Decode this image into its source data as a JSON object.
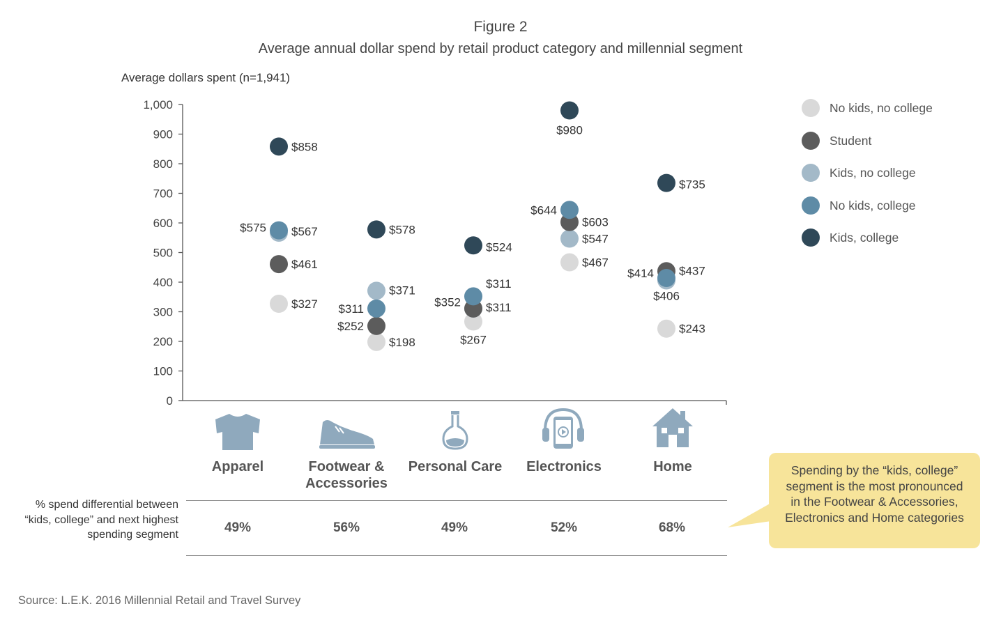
{
  "header": {
    "figure_label": "Figure 2",
    "title": "Average annual dollar spend by retail product category and millennial segment"
  },
  "chart_data": {
    "type": "scatter",
    "title": "Average annual dollar spend by retail product category and millennial segment",
    "ylabel": "Average dollars spent (n=1,941)",
    "xlabel": "",
    "ylim": [
      0,
      1000
    ],
    "yticks": [
      0,
      100,
      200,
      300,
      400,
      500,
      600,
      700,
      800,
      900,
      1000
    ],
    "ytick_labels": [
      "0",
      "100",
      "200",
      "300",
      "400",
      "500",
      "600",
      "700",
      "800",
      "900",
      "1,000"
    ],
    "categories": [
      "Apparel",
      "Footwear & Accessories",
      "Personal Care",
      "Electronics",
      "Home"
    ],
    "legend_position": "right",
    "grid": false,
    "series": [
      {
        "name": "No kids, no college",
        "color": "#d9d9d9",
        "values": [
          327,
          198,
          267,
          467,
          243
        ]
      },
      {
        "name": "Student",
        "color": "#5c5c5c",
        "values": [
          461,
          252,
          311,
          603,
          437
        ]
      },
      {
        "name": "Kids, no college",
        "color": "#a3b9c8",
        "values": [
          567,
          371,
          311,
          547,
          406
        ]
      },
      {
        "name": "No kids, college",
        "color": "#5e8ba6",
        "values": [
          575,
          311,
          352,
          644,
          414
        ]
      },
      {
        "name": "Kids, college",
        "color": "#2f4858",
        "values": [
          858,
          578,
          524,
          980,
          735
        ]
      }
    ]
  },
  "category_icons": [
    "tshirt-icon",
    "sneaker-icon",
    "flask-icon",
    "tablet-headphones-icon",
    "house-icon"
  ],
  "differential": {
    "row_label": "% spend differential between “kids, college” and next highest spending segment",
    "values": [
      "49%",
      "56%",
      "49%",
      "52%",
      "68%"
    ]
  },
  "callout": {
    "text": "Spending by the “kids, college” segment is the most pronounced in the Footwear & Accessories, Electronics and Home categories"
  },
  "source": "Source: L.E.K. 2016 Millennial Retail and Travel Survey",
  "colors": {
    "icon": "#8fa9bd",
    "callout_bg": "#f7e49a",
    "axis": "#555555"
  }
}
